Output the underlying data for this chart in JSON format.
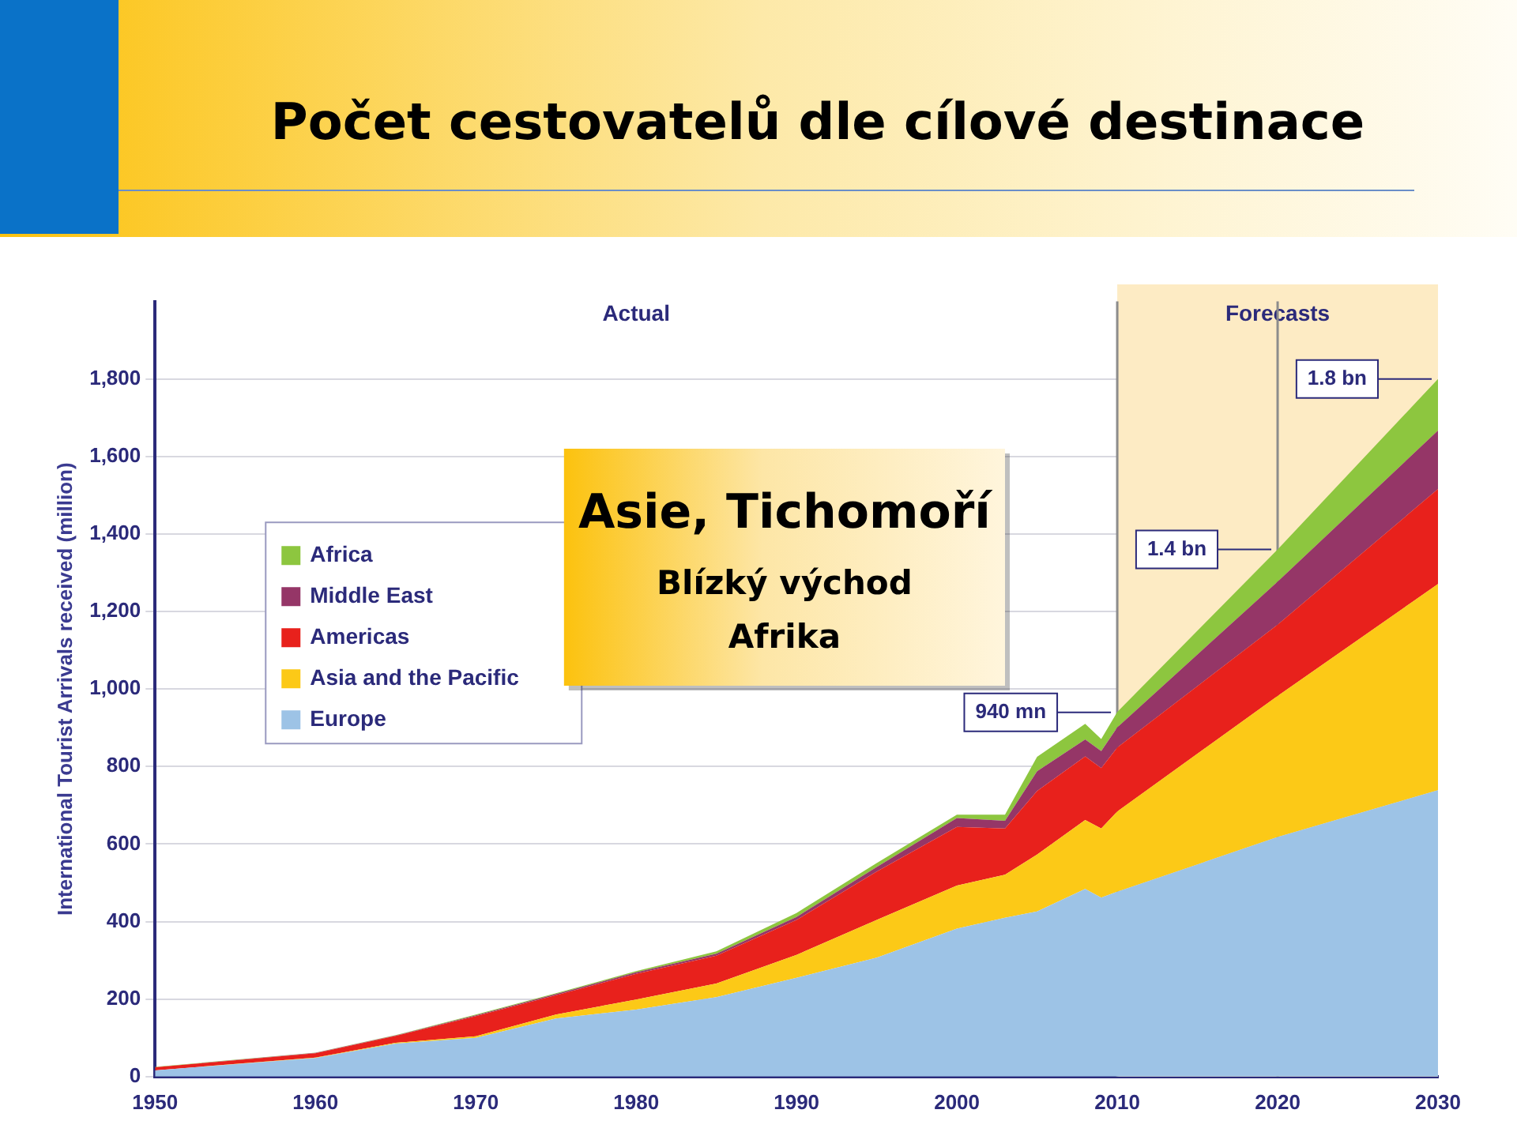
{
  "chart_data": {
    "type": "area",
    "title": "Počet cestovatelů dle cílové destinace",
    "ylabel": "International Tourist Arrivals received (million)",
    "stacked": true,
    "x": [
      1950,
      1960,
      1965,
      1970,
      1975,
      1980,
      1985,
      1990,
      1995,
      2000,
      2003,
      2005,
      2008,
      2009,
      2010,
      2020,
      2030
    ],
    "series": [
      {
        "name": "Europe",
        "color": "#9dc3e6",
        "values": [
          16,
          48,
          85,
          100,
          150,
          173,
          205,
          255,
          307,
          382,
          410,
          426,
          484,
          462,
          477,
          618,
          739
        ]
      },
      {
        "name": "Asia and the Pacific",
        "color": "#fcc917",
        "values": [
          0,
          1,
          2,
          4,
          10,
          26,
          35,
          59,
          97,
          111,
          111,
          147,
          178,
          178,
          207,
          364,
          532
        ]
      },
      {
        "name": "Americas",
        "color": "#e8211c",
        "values": [
          8,
          11,
          18,
          52,
          50,
          66,
          72,
          90,
          125,
          151,
          119,
          164,
          164,
          156,
          165,
          184,
          245
        ]
      },
      {
        "name": "Middle East",
        "color": "#953667",
        "values": [
          0,
          1,
          1,
          2,
          3,
          4,
          5,
          8,
          12,
          23,
          20,
          51,
          44,
          44,
          52,
          111,
          151
        ]
      },
      {
        "name": "Africa",
        "color": "#8dc63f",
        "values": [
          1,
          1,
          1,
          2,
          2,
          3,
          6,
          10,
          10,
          9,
          16,
          37,
          40,
          31,
          40,
          83,
          133
        ]
      }
    ],
    "xlim": [
      1950,
      2030
    ],
    "xticks": [
      1950,
      1960,
      1970,
      1980,
      1990,
      2000,
      2010,
      2020,
      2030
    ],
    "ylim": [
      0,
      2000
    ],
    "yticks": [
      0,
      {
        "value": 200,
        "label": "200"
      },
      {
        "value": 400,
        "label": "400"
      },
      {
        "value": 600,
        "label": "600"
      },
      {
        "value": 800,
        "label": "800"
      },
      {
        "value": 1000,
        "label": "1,000"
      },
      {
        "value": 1200,
        "label": "1,200"
      },
      {
        "value": 1400,
        "label": "1,400"
      },
      {
        "value": 1600,
        "label": "1,600"
      },
      {
        "value": 1800,
        "label": "1,800"
      }
    ],
    "grid": "y",
    "legend": "top left",
    "bands": [
      {
        "axis": "x",
        "from": 2010,
        "to": 2030,
        "label": "Forecasts",
        "color": "#fdebc4"
      }
    ],
    "ref_lines": [
      {
        "axis": "x",
        "value": 2010,
        "color": "#8c8c8c"
      },
      {
        "axis": "x",
        "value": 2020,
        "color": "#8c8c8c"
      }
    ],
    "annotations": [
      "Actual",
      "Asie, Tichomoří",
      "Blízký východ",
      "Afrika",
      {
        "text": "940 mn",
        "x": 2010,
        "y": 940
      },
      {
        "text": "1.4 bn",
        "x": 2020,
        "y": 1360
      },
      {
        "text": "1.8 bn",
        "x": 2030,
        "y": 1800
      }
    ]
  }
}
